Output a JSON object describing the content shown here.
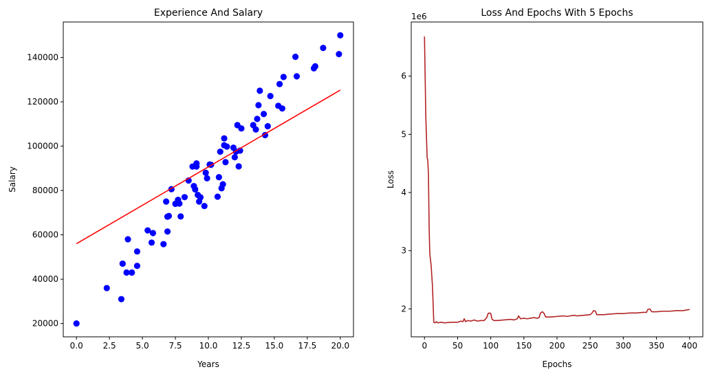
{
  "chart_data": [
    {
      "type": "scatter",
      "title": "Experience And Salary",
      "xlabel": "Years",
      "ylabel": "Salary",
      "xlim": [
        -1.0,
        21.0
      ],
      "ylim": [
        14000,
        156000
      ],
      "xticks": [
        0.0,
        2.5,
        5.0,
        7.5,
        10.0,
        12.5,
        15.0,
        17.5,
        20.0
      ],
      "xtick_labels": [
        "0.0",
        "2.5",
        "5.0",
        "7.5",
        "10.0",
        "12.5",
        "15.0",
        "17.5",
        "20.0"
      ],
      "yticks": [
        20000,
        40000,
        60000,
        80000,
        100000,
        120000,
        140000
      ],
      "ytick_labels": [
        "20000",
        "40000",
        "60000",
        "80000",
        "100000",
        "120000",
        "140000"
      ],
      "grid": false,
      "colors": {
        "points": "#0000ff",
        "fit_line": "#ff0000"
      },
      "series": [
        {
          "kind": "points",
          "x": [
            0.0,
            2.3,
            3.4,
            3.5,
            3.8,
            3.9,
            4.2,
            4.6,
            4.6,
            5.4,
            5.7,
            5.8,
            6.6,
            6.8,
            6.9,
            6.9,
            7.0,
            7.2,
            7.5,
            7.7,
            7.8,
            7.9,
            8.2,
            8.5,
            8.8,
            8.9,
            9.0,
            9.1,
            9.1,
            9.2,
            9.3,
            9.4,
            9.7,
            9.8,
            9.9,
            10.1,
            10.2,
            10.7,
            10.8,
            10.9,
            11.0,
            11.1,
            11.2,
            11.2,
            11.3,
            11.4,
            11.9,
            12.0,
            12.1,
            12.2,
            12.3,
            12.4,
            12.5,
            13.4,
            13.6,
            13.7,
            13.8,
            13.9,
            14.2,
            14.3,
            14.5,
            14.7,
            15.3,
            15.4,
            15.6,
            15.7,
            16.6,
            16.7,
            18.0,
            18.1,
            18.7,
            19.9,
            20.0
          ],
          "y": [
            20000,
            36000,
            31000,
            47000,
            43000,
            58000,
            43000,
            52500,
            46000,
            62000,
            56500,
            60800,
            55800,
            75000,
            61500,
            68200,
            68500,
            80600,
            74000,
            75800,
            74100,
            68300,
            77000,
            84500,
            90800,
            82000,
            80500,
            90800,
            92200,
            78000,
            75000,
            76900,
            73000,
            88000,
            85500,
            91700,
            91600,
            77200,
            86000,
            97500,
            81000,
            82800,
            100400,
            103500,
            92800,
            99800,
            99300,
            95000,
            97500,
            109500,
            90900,
            98000,
            108000,
            109500,
            107500,
            112300,
            118500,
            125000,
            114500,
            105000,
            109000,
            122600,
            118200,
            128000,
            117000,
            131200,
            140300,
            131500,
            135100,
            136000,
            144300,
            141500,
            150000
          ]
        },
        {
          "kind": "fit_line",
          "x": [
            0.0,
            20.0
          ],
          "y": [
            56000,
            125300
          ]
        }
      ]
    },
    {
      "type": "line",
      "title": "Loss And Epochs With 5 Epochs",
      "xlabel": "Epochs",
      "ylabel": "Loss",
      "offset_text": "1e6",
      "xlim": [
        -20,
        420
      ],
      "ylim": [
        1.52,
        6.93
      ],
      "xticks": [
        0,
        50,
        100,
        150,
        200,
        250,
        300,
        350,
        400
      ],
      "xtick_labels": [
        "0",
        "50",
        "100",
        "150",
        "200",
        "250",
        "300",
        "350",
        "400"
      ],
      "yticks": [
        2,
        3,
        4,
        5,
        6
      ],
      "ytick_labels": [
        "2",
        "3",
        "4",
        "5",
        "6"
      ],
      "grid": false,
      "colors": {
        "line": "#b22222"
      },
      "series": [
        {
          "x": [
            0,
            2,
            4,
            5,
            6,
            7,
            8,
            10,
            12,
            13,
            14,
            16,
            18,
            20,
            25,
            30,
            40,
            50,
            55,
            58,
            60,
            62,
            65,
            70,
            75,
            80,
            85,
            90,
            94,
            96,
            98,
            100,
            102,
            105,
            110,
            120,
            130,
            135,
            140,
            142,
            145,
            150,
            155,
            160,
            165,
            170,
            173,
            175,
            178,
            180,
            183,
            190,
            200,
            210,
            215,
            220,
            225,
            230,
            240,
            250,
            253,
            255,
            258,
            260,
            263,
            270,
            280,
            290,
            300,
            310,
            320,
            330,
            335,
            337,
            340,
            343,
            350,
            360,
            370,
            380,
            390,
            395,
            400
          ],
          "y": [
            6.68,
            5.3,
            4.6,
            4.55,
            4.3,
            3.4,
            2.95,
            2.75,
            2.4,
            2.1,
            1.77,
            1.76,
            1.78,
            1.76,
            1.77,
            1.76,
            1.77,
            1.77,
            1.79,
            1.78,
            1.83,
            1.78,
            1.8,
            1.79,
            1.81,
            1.79,
            1.8,
            1.8,
            1.85,
            1.92,
            1.93,
            1.92,
            1.82,
            1.8,
            1.8,
            1.81,
            1.82,
            1.81,
            1.83,
            1.88,
            1.83,
            1.84,
            1.83,
            1.84,
            1.85,
            1.84,
            1.85,
            1.93,
            1.95,
            1.93,
            1.86,
            1.86,
            1.87,
            1.88,
            1.87,
            1.88,
            1.89,
            1.88,
            1.89,
            1.9,
            1.93,
            1.97,
            1.96,
            1.9,
            1.9,
            1.9,
            1.91,
            1.92,
            1.92,
            1.93,
            1.93,
            1.94,
            1.94,
            1.99,
            2.0,
            1.95,
            1.95,
            1.96,
            1.96,
            1.97,
            1.97,
            1.98,
            1.99
          ]
        }
      ]
    }
  ]
}
